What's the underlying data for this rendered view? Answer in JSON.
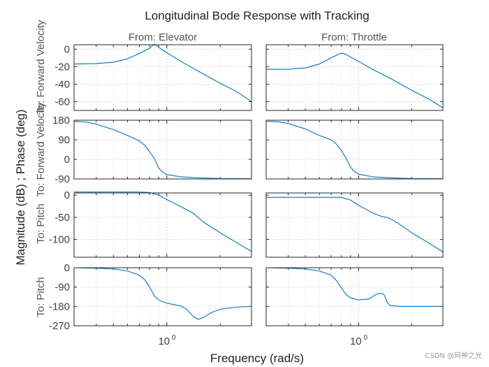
{
  "chart_data": {
    "type": "line",
    "title": "Longitudinal Bode Response with Tracking",
    "xlabel": "Frequency  (rad/s)",
    "ylabel": "Magnitude (dB) ; Phase (deg)",
    "xscale": "log",
    "xlim": [
      0.3,
      3.0
    ],
    "x_tick_labels": [
      {
        "value": 1,
        "base": "10",
        "exp": "0"
      }
    ],
    "columns": [
      "From: Elevator",
      "From: Throttle"
    ],
    "row_labels": [
      "To: Forward Velocity",
      "To: Forward Velocity",
      "To: Pitch",
      "To: Pitch"
    ],
    "line_color": "#0072BD",
    "rows": [
      {
        "kind": "magnitude",
        "ylim": [
          -70,
          5
        ],
        "yticks": [
          0,
          -20,
          -40,
          -60
        ]
      },
      {
        "kind": "phase",
        "ylim": [
          -90,
          180
        ],
        "yticks": [
          180,
          90,
          0,
          -90
        ]
      },
      {
        "kind": "magnitude",
        "ylim": [
          -140,
          5
        ],
        "yticks": [
          0,
          -50,
          -100
        ]
      },
      {
        "kind": "phase",
        "ylim": [
          -270,
          0
        ],
        "yticks": [
          0,
          -90,
          -180,
          -270
        ]
      }
    ],
    "panels": [
      {
        "row": 0,
        "col": 0,
        "x": [
          0.3,
          0.4,
          0.5,
          0.6,
          0.7,
          0.8,
          0.85,
          0.9,
          1.0,
          1.2,
          1.5,
          2.0,
          2.5,
          3.0
        ],
        "y": [
          -17,
          -16.5,
          -15,
          -11,
          -5,
          1,
          6,
          2,
          -4,
          -14,
          -25,
          -39,
          -49,
          -60
        ]
      },
      {
        "row": 0,
        "col": 1,
        "x": [
          0.3,
          0.4,
          0.5,
          0.6,
          0.7,
          0.75,
          0.8,
          0.85,
          0.9,
          1.0,
          1.2,
          1.5,
          2.0,
          2.5,
          3.0
        ],
        "y": [
          -23,
          -23,
          -21.5,
          -17,
          -10,
          -7,
          -4.5,
          -6,
          -9,
          -14,
          -23,
          -33,
          -47,
          -57,
          -67
        ]
      },
      {
        "row": 1,
        "col": 0,
        "x": [
          0.3,
          0.35,
          0.4,
          0.5,
          0.6,
          0.7,
          0.75,
          0.8,
          0.85,
          0.9,
          0.95,
          1.0,
          1.2,
          1.5,
          2.0,
          3.0
        ],
        "y": [
          175,
          172,
          162,
          137,
          110,
          85,
          65,
          35,
          5,
          -40,
          -60,
          -70,
          -80,
          -85,
          -88,
          -89
        ]
      },
      {
        "row": 1,
        "col": 1,
        "x": [
          0.3,
          0.35,
          0.4,
          0.5,
          0.6,
          0.7,
          0.75,
          0.8,
          0.85,
          0.9,
          0.95,
          1.0,
          1.2,
          1.5,
          2.0,
          3.0
        ],
        "y": [
          175,
          173,
          165,
          140,
          110,
          90,
          70,
          40,
          5,
          -35,
          -57,
          -68,
          -80,
          -85,
          -88,
          -89
        ]
      },
      {
        "row": 2,
        "col": 0,
        "x": [
          0.3,
          0.5,
          0.7,
          0.8,
          0.9,
          1.0,
          1.2,
          1.4,
          1.5,
          1.6,
          2.0,
          2.5,
          3.0
        ],
        "y": [
          7,
          7,
          7,
          6,
          0,
          -10,
          -26,
          -40,
          -50,
          -60,
          -85,
          -108,
          -127
        ]
      },
      {
        "row": 2,
        "col": 1,
        "x": [
          0.3,
          0.5,
          0.7,
          0.8,
          0.9,
          1.0,
          1.2,
          1.35,
          1.45,
          1.6,
          2.0,
          2.5,
          3.0
        ],
        "y": [
          -5,
          -5,
          -5,
          -5,
          -11,
          -23,
          -40,
          -48,
          -50,
          -58,
          -85,
          -108,
          -128
        ]
      },
      {
        "row": 3,
        "col": 0,
        "x": [
          0.3,
          0.4,
          0.5,
          0.6,
          0.7,
          0.75,
          0.8,
          0.85,
          0.9,
          1.0,
          1.2,
          1.3,
          1.4,
          1.5,
          1.6,
          1.8,
          2.0,
          2.5,
          3.0
        ],
        "y": [
          0,
          -2,
          -6,
          -15,
          -35,
          -55,
          -90,
          -130,
          -150,
          -165,
          -178,
          -195,
          -225,
          -240,
          -232,
          -207,
          -193,
          -183,
          -180
        ]
      },
      {
        "row": 3,
        "col": 1,
        "x": [
          0.3,
          0.4,
          0.5,
          0.6,
          0.7,
          0.75,
          0.8,
          0.85,
          0.9,
          1.0,
          1.15,
          1.25,
          1.35,
          1.4,
          1.45,
          1.5,
          1.7,
          2.0,
          3.0
        ],
        "y": [
          0,
          -2,
          -6,
          -15,
          -35,
          -60,
          -95,
          -125,
          -140,
          -150,
          -145,
          -125,
          -118,
          -128,
          -160,
          -175,
          -180,
          -180,
          -180
        ]
      }
    ]
  },
  "watermark": "CSDN @珂神之光"
}
